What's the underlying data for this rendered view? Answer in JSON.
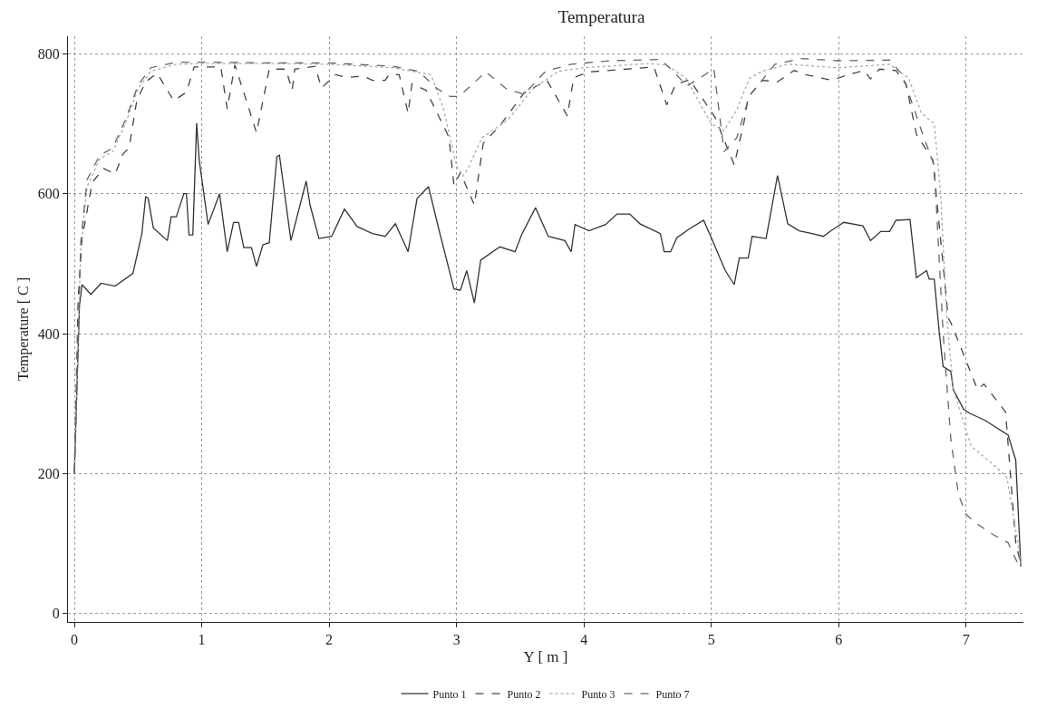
{
  "chart_data": {
    "type": "line",
    "title": "Temperatura",
    "xlabel": "Y [ m ]",
    "ylabel": "Temperature [ C ]",
    "xlim": [
      -0.05,
      7.45
    ],
    "xticks": [
      0,
      1,
      2,
      3,
      4,
      5,
      6,
      7
    ],
    "ylim": [
      -12,
      825
    ],
    "yticks": [
      0,
      200,
      400,
      600,
      800
    ],
    "grid": true,
    "legend": "bottom",
    "marker": "none",
    "series": [
      {
        "name": "Punto 1",
        "color": "#333333",
        "line_style": "solid",
        "x": [
          0,
          0.04,
          0.06,
          0.13,
          0.21,
          0.32,
          0.46,
          0.53,
          0.56,
          0.58,
          0.62,
          0.73,
          0.76,
          0.8,
          0.86,
          0.88,
          0.9,
          0.93,
          0.96,
          0.98,
          1.05,
          1.14,
          1.2,
          1.25,
          1.29,
          1.33,
          1.39,
          1.43,
          1.48,
          1.53,
          1.59,
          1.61,
          1.7,
          1.82,
          1.85,
          1.92,
          2.02,
          2.12,
          2.22,
          2.34,
          2.44,
          2.52,
          2.62,
          2.69,
          2.78,
          2.86,
          2.98,
          3.03,
          3.08,
          3.14,
          3.19,
          3.34,
          3.46,
          3.51,
          3.62,
          3.72,
          3.85,
          3.9,
          3.93,
          4.04,
          4.17,
          4.26,
          4.36,
          4.44,
          4.6,
          4.63,
          4.68,
          4.73,
          4.83,
          4.94,
          5.0,
          5.11,
          5.18,
          5.22,
          5.29,
          5.32,
          5.43,
          5.52,
          5.6,
          5.69,
          5.79,
          5.88,
          5.94,
          6.04,
          6.19,
          6.25,
          6.33,
          6.4,
          6.45,
          6.56,
          6.61,
          6.69,
          6.71,
          6.75,
          6.79,
          6.82,
          6.88,
          6.9,
          6.98,
          7.03,
          7.15,
          7.33,
          7.39,
          7.43
        ],
        "values": [
          200,
          440,
          470,
          456,
          472,
          468,
          486,
          543,
          596,
          593,
          551,
          533,
          567,
          567,
          600,
          600,
          541,
          541,
          701,
          648,
          556,
          600,
          517,
          559,
          559,
          523,
          523,
          496,
          527,
          530,
          653,
          655,
          533,
          618,
          584,
          536,
          539,
          578,
          553,
          543,
          539,
          557,
          517,
          593,
          610,
          550,
          464,
          462,
          490,
          444,
          505,
          524,
          517,
          541,
          580,
          539,
          533,
          517,
          556,
          547,
          556,
          571,
          571,
          557,
          543,
          517,
          517,
          537,
          550,
          562,
          537,
          490,
          470,
          508,
          508,
          539,
          536,
          626,
          557,
          547,
          543,
          539,
          547,
          559,
          554,
          533,
          546,
          546,
          562,
          563,
          480,
          490,
          478,
          478,
          401,
          353,
          346,
          320,
          292,
          286,
          276,
          255,
          219,
          67
        ]
      },
      {
        "name": "Punto 2",
        "color": "#444444",
        "line_style": "dashed",
        "x": [
          0,
          0.03,
          0.06,
          0.14,
          0.23,
          0.32,
          0.38,
          0.43,
          0.49,
          0.56,
          0.65,
          0.78,
          0.88,
          0.94,
          1.15,
          1.2,
          1.26,
          1.34,
          1.43,
          1.53,
          1.66,
          1.71,
          1.73,
          1.89,
          1.94,
          2.05,
          2.14,
          2.27,
          2.34,
          2.44,
          2.47,
          2.55,
          2.62,
          2.65,
          2.76,
          2.94,
          2.98,
          3.03,
          3.14,
          3.21,
          3.34,
          3.53,
          3.71,
          3.87,
          3.92,
          4.04,
          4.55,
          4.65,
          4.72,
          4.83,
          5.03,
          5.18,
          5.26,
          5.29,
          5.4,
          5.52,
          5.65,
          5.74,
          5.95,
          6.07,
          6.2,
          6.25,
          6.32,
          6.45,
          6.53,
          6.61,
          6.74,
          6.86,
          6.88,
          7.04,
          7.09,
          7.14,
          7.31,
          7.39,
          7.43
        ],
        "values": [
          200,
          450,
          535,
          616,
          636,
          628,
          656,
          666,
          733,
          760,
          772,
          733,
          745,
          781,
          781,
          721,
          784,
          739,
          687,
          778,
          778,
          748,
          778,
          782,
          751,
          770,
          766,
          768,
          762,
          762,
          770,
          770,
          715,
          757,
          748,
          681,
          612,
          630,
          584,
          672,
          697,
          744,
          762,
          711,
          766,
          774,
          781,
          727,
          756,
          763,
          709,
          641,
          705,
          738,
          762,
          760,
          776,
          770,
          762,
          770,
          776,
          764,
          778,
          776,
          756,
          685,
          648,
          422,
          416,
          343,
          320,
          328,
          288,
          101,
          70
        ]
      },
      {
        "name": "Punto 3",
        "color": "#aaaaaa",
        "line_style": "dotted",
        "x": [
          0,
          0.05,
          0.1,
          0.2,
          0.3,
          0.4,
          0.5,
          0.6,
          0.8,
          1.0,
          1.5,
          2.0,
          2.5,
          2.8,
          2.9,
          3.0,
          3.05,
          3.1,
          3.2,
          3.4,
          3.6,
          3.8,
          4.0,
          4.5,
          4.65,
          4.8,
          5.0,
          5.1,
          5.2,
          5.3,
          5.4,
          5.6,
          6.0,
          6.4,
          6.55,
          6.65,
          6.75,
          6.8,
          6.85,
          6.9,
          7.04,
          7.2,
          7.32,
          7.41,
          7.43
        ],
        "values": [
          200,
          520,
          610,
          650,
          660,
          700,
          750,
          775,
          785,
          786,
          786,
          785,
          780,
          770,
          720,
          640,
          625,
          640,
          680,
          705,
          750,
          775,
          780,
          786,
          784,
          765,
          700,
          690,
          720,
          765,
          775,
          785,
          780,
          785,
          765,
          715,
          700,
          600,
          420,
          320,
          239,
          215,
          195,
          97,
          70
        ]
      },
      {
        "name": "Punto 7",
        "color": "#666666",
        "line_style": "dashed",
        "x": [
          0,
          0.05,
          0.1,
          0.2,
          0.3,
          0.4,
          0.5,
          0.6,
          0.8,
          1.0,
          1.5,
          2.0,
          2.5,
          2.7,
          2.85,
          2.95,
          3.02,
          3.23,
          3.39,
          3.53,
          3.7,
          3.9,
          4.2,
          4.6,
          4.7,
          4.81,
          4.95,
          5.02,
          5.1,
          5.2,
          5.3,
          5.5,
          5.7,
          6.0,
          6.4,
          6.5,
          6.65,
          6.75,
          6.82,
          6.88,
          6.94,
          7.0,
          7.07,
          7.21,
          7.33,
          7.41
        ],
        "values": [
          200,
          530,
          620,
          655,
          665,
          705,
          755,
          780,
          788,
          788,
          787,
          787,
          782,
          775,
          750,
          739,
          739,
          774,
          750,
          742,
          775,
          785,
          790,
          792,
          775,
          754,
          770,
          779,
          660,
          680,
          740,
          785,
          793,
          790,
          791,
          770,
          690,
          640,
          400,
          250,
          170,
          142,
          130,
          113,
          101,
          70
        ]
      }
    ]
  }
}
